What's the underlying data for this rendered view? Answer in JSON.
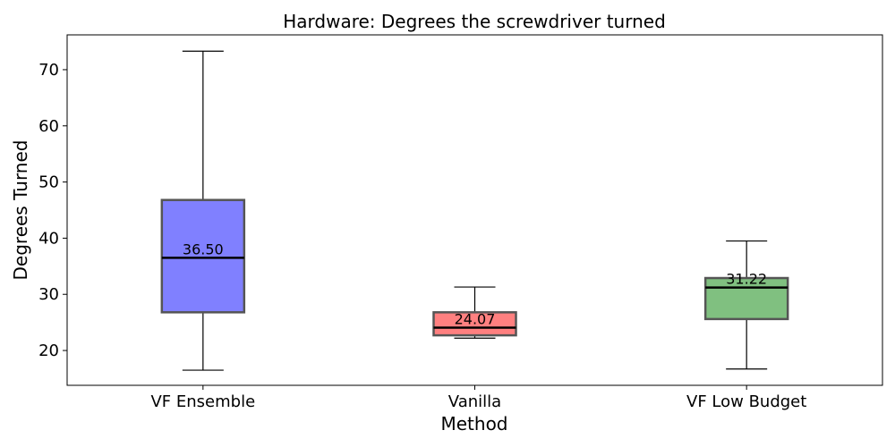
{
  "chart_data": {
    "type": "box",
    "title": "Hardware: Degrees the screwdriver turned",
    "xlabel": "Method",
    "ylabel": "Degrees Turned",
    "ylim": [
      13.8,
      76.2
    ],
    "yticks": [
      20,
      30,
      40,
      50,
      60,
      70
    ],
    "grid": false,
    "categories": [
      "VF Ensemble",
      "Vanilla",
      "VF Low Budget"
    ],
    "boxes": [
      {
        "category": "VF Ensemble",
        "whisker_low": 16.5,
        "q1": 26.8,
        "median": 36.5,
        "q3": 46.8,
        "whisker_high": 73.3,
        "color": "#8080ff",
        "label": "36.50"
      },
      {
        "category": "Vanilla",
        "whisker_low": 22.2,
        "q1": 22.7,
        "median": 24.07,
        "q3": 26.8,
        "whisker_high": 31.3,
        "color": "#ff8080",
        "label": "24.07"
      },
      {
        "category": "VF Low Budget",
        "whisker_low": 16.7,
        "q1": 25.6,
        "median": 31.22,
        "q3": 32.9,
        "whisker_high": 39.5,
        "color": "#80c080",
        "label": "31.22"
      }
    ]
  }
}
